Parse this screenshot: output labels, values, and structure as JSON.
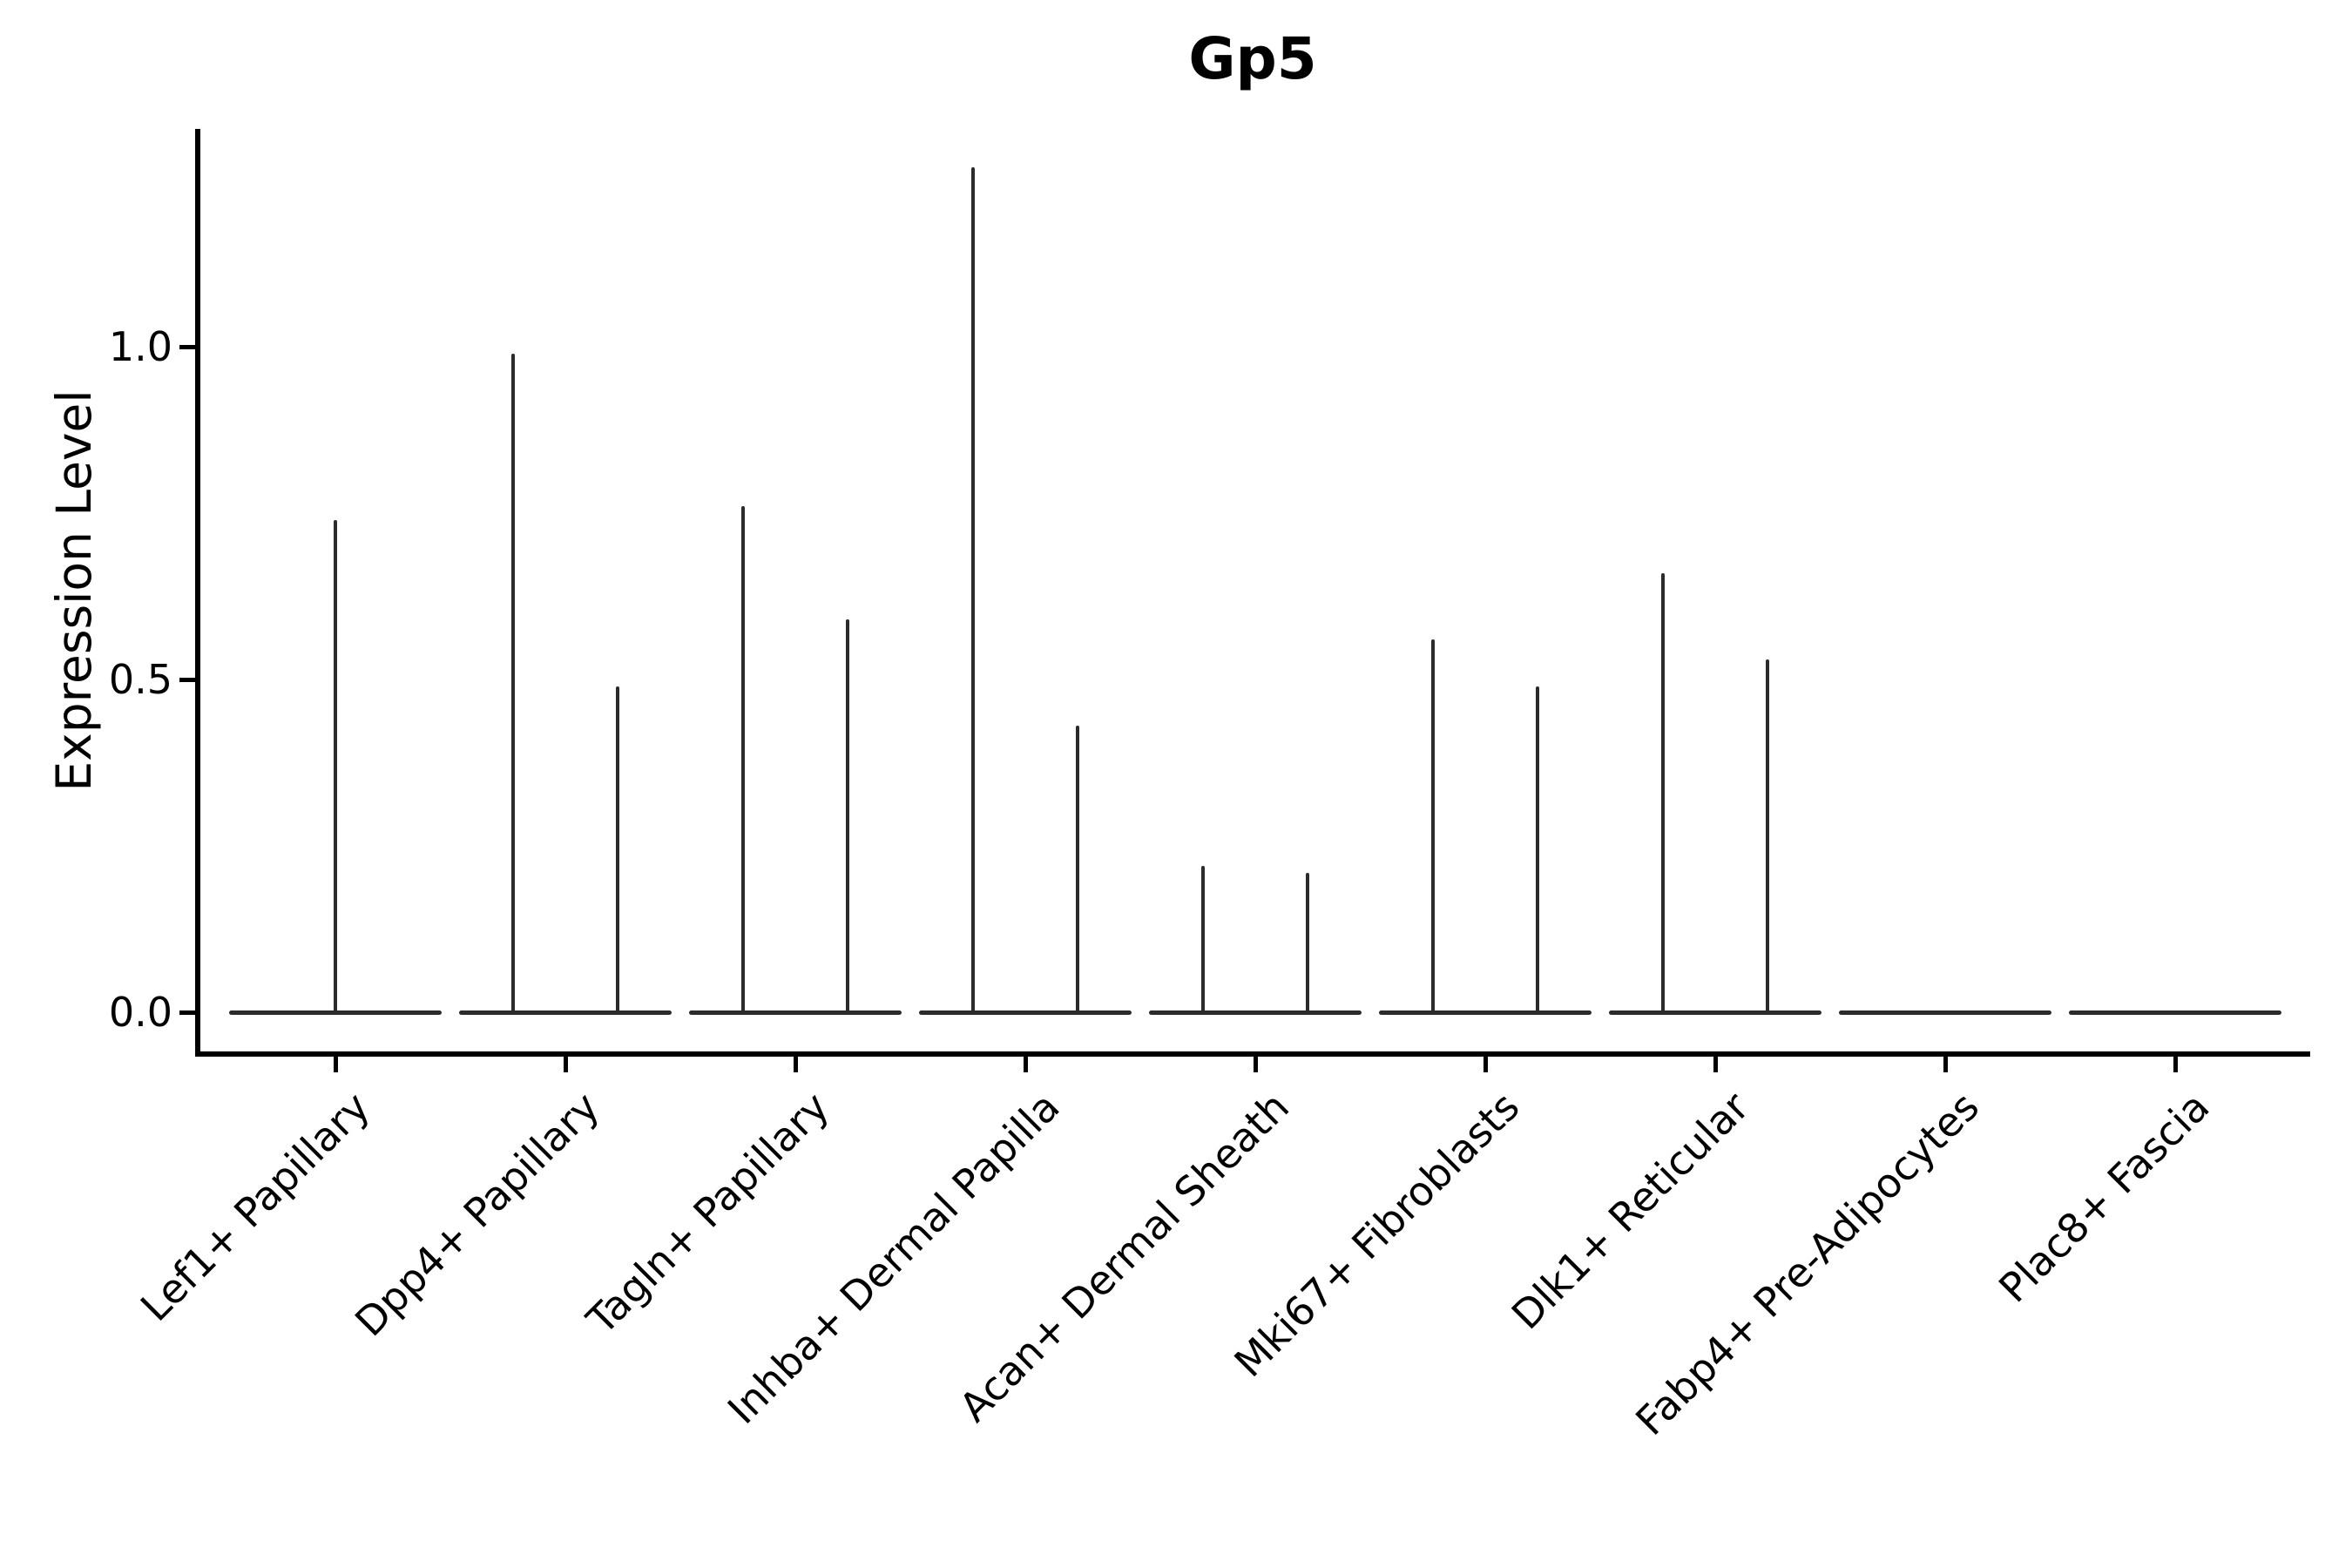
{
  "chart_data": {
    "type": "violin",
    "title": "Gp5",
    "ylabel": "Expression Level",
    "xlabel": "",
    "grid": false,
    "legend_position": "none",
    "line_color": "#2b2b2b",
    "axis_color": "#000000",
    "ylim": [
      -0.07,
      1.33
    ],
    "y_ticks": [
      {
        "label": "0.0",
        "value": 0.0
      },
      {
        "label": "0.5",
        "value": 0.5
      },
      {
        "label": "1.0",
        "value": 1.0
      }
    ],
    "categories": [
      "Lef1+ Papillary",
      "Dpp4+ Papillary",
      "Tagln+ Papillary",
      "Inhba+ Dermal Papilla",
      "Acan+ Dermal Sheath",
      "Mki67+ Fibroblasts",
      "Dlk1+ Reticular",
      "Fabp4+ Pre-Adipocytes",
      "Plac8+ Fascia"
    ],
    "violins": [
      {
        "category": "Lef1+ Papillary",
        "baseline_value": 0.0,
        "spikes": [
          {
            "side": "center",
            "max": 0.74
          }
        ]
      },
      {
        "category": "Dpp4+ Papillary",
        "baseline_value": 0.0,
        "spikes": [
          {
            "side": "left",
            "max": 0.99
          },
          {
            "side": "right",
            "max": 0.49
          }
        ]
      },
      {
        "category": "Tagln+ Papillary",
        "baseline_value": 0.0,
        "spikes": [
          {
            "side": "left",
            "max": 0.76
          },
          {
            "side": "right",
            "max": 0.59
          }
        ]
      },
      {
        "category": "Inhba+ Dermal Papilla",
        "baseline_value": 0.0,
        "spikes": [
          {
            "side": "left",
            "max": 1.27
          },
          {
            "side": "right",
            "max": 0.43
          }
        ]
      },
      {
        "category": "Acan+ Dermal Sheath",
        "baseline_value": 0.0,
        "spikes": [
          {
            "side": "left",
            "max": 0.22
          },
          {
            "side": "right",
            "max": 0.21
          }
        ]
      },
      {
        "category": "Mki67+ Fibroblasts",
        "baseline_value": 0.0,
        "spikes": [
          {
            "side": "left",
            "max": 0.56
          },
          {
            "side": "right",
            "max": 0.49
          }
        ]
      },
      {
        "category": "Dlk1+ Reticular",
        "baseline_value": 0.0,
        "spikes": [
          {
            "side": "left",
            "max": 0.66
          },
          {
            "side": "right",
            "max": 0.53
          }
        ]
      },
      {
        "category": "Fabp4+ Pre-Adipocytes",
        "baseline_value": 0.0,
        "spikes": []
      },
      {
        "category": "Plac8+ Fascia",
        "baseline_value": 0.0,
        "spikes": []
      }
    ]
  }
}
